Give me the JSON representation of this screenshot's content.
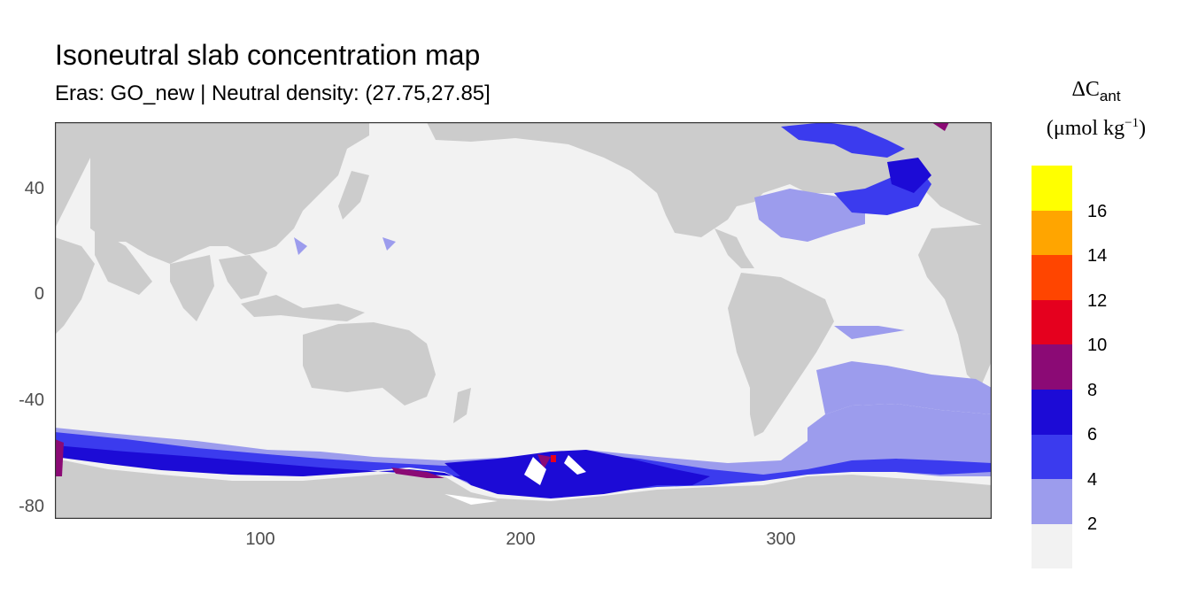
{
  "title": "Isoneutral slab concentration map",
  "subtitle": "Eras: GO_new | Neutral density: (27.75,27.85]",
  "legend": {
    "title_symbol": "ΔC",
    "title_subscript": "ant",
    "unit_main": "(μmol kg",
    "unit_exp": "−1",
    "unit_close": ")",
    "labels": [
      "16",
      "14",
      "12",
      "10",
      "8",
      "6",
      "4",
      "2"
    ],
    "colors": [
      "#ffff00",
      "#ffa500",
      "#ff4500",
      "#e5001e",
      "#8b0a75",
      "#1c0bd6",
      "#3b3bee",
      "#9c9ced",
      "#f2f2f2"
    ]
  },
  "chart_data": {
    "type": "heatmap",
    "x_ticks": [
      "100",
      "200",
      "300"
    ],
    "y_ticks": [
      "40",
      "0",
      "-40",
      "-80"
    ],
    "xlim": [
      20,
      380
    ],
    "ylim": [
      -85,
      65
    ],
    "land_color": "#cccccc",
    "bins": [
      "(0,2]",
      "(2,4]",
      "(4,6]",
      "(6,8]",
      "(8,10]",
      "(10,12]",
      "(12,14]",
      "(14,16]",
      "(16,18]"
    ]
  }
}
